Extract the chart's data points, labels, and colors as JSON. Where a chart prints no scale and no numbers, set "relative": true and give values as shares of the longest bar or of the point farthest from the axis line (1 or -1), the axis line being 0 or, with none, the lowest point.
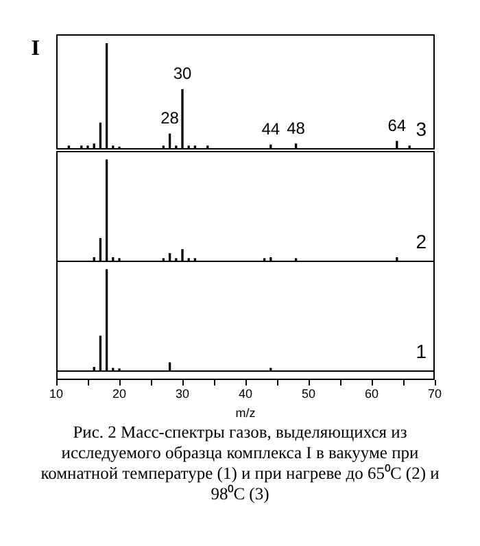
{
  "chart_data": [
    {
      "type": "bar",
      "relative": true,
      "ylabel": "I",
      "xlim": [
        10,
        70
      ],
      "tick_labels": false,
      "legend": false,
      "x": [
        12,
        14,
        15,
        16,
        17,
        18,
        19,
        20,
        27,
        28,
        29,
        30,
        31,
        32,
        34,
        44,
        48,
        64,
        66
      ],
      "series": [
        {
          "name": "3",
          "color": "#000000",
          "values": [
            0.02,
            0.02,
            0.02,
            0.04,
            0.24,
            1,
            0.02,
            0.01,
            0.02,
            0.135,
            0.02,
            0.56,
            0.02,
            0.02,
            0.02,
            0.03,
            0.04,
            0.065,
            0.02
          ]
        }
      ],
      "annotations": [
        {
          "text": "28",
          "x": 28,
          "y": 0.135
        },
        {
          "text": "30",
          "x": 30,
          "y": 0.56
        },
        {
          "text": "44",
          "x": 44,
          "y": 0.03
        },
        {
          "text": "48",
          "x": 48,
          "y": 0.04
        },
        {
          "text": "64",
          "x": 64,
          "y": 0.065
        }
      ]
    },
    {
      "type": "bar",
      "relative": true,
      "xlim": [
        10,
        70
      ],
      "tick_labels": false,
      "legend": false,
      "x": [
        16,
        17,
        18,
        19,
        20,
        27,
        28,
        29,
        30,
        31,
        32,
        43,
        44,
        48,
        64
      ],
      "series": [
        {
          "name": "2",
          "color": "#000000",
          "values": [
            0.03,
            0.22,
            1,
            0.03,
            0.02,
            0.02,
            0.07,
            0.02,
            0.11,
            0.02,
            0.02,
            0.02,
            0.03,
            0.02,
            0.03
          ]
        }
      ]
    },
    {
      "type": "bar",
      "relative": true,
      "xlabel": "m/z",
      "xlim": [
        10,
        70
      ],
      "tick_labels": "x",
      "legend": false,
      "xticks": [
        10,
        {
          "value": 15,
          "label": null
        },
        20,
        {
          "value": 25,
          "label": null
        },
        30,
        {
          "value": 35,
          "label": null
        },
        40,
        {
          "value": 45,
          "label": null
        },
        50,
        {
          "value": 55,
          "label": null
        },
        60,
        {
          "value": 65,
          "label": null
        },
        70
      ],
      "x": [
        16,
        17,
        18,
        19,
        20,
        28,
        44
      ],
      "series": [
        {
          "name": "1",
          "color": "#000000",
          "values": [
            0.03,
            0.34,
            1,
            0.02,
            0.015,
            0.075,
            0.02
          ]
        }
      ],
      "annotations": [
        "Рис. 2  Масс-спектры газов, выделяющихся из исследуемого образца комплекса I в вакууме при комнатной температуре (1) и при нагреве до 65⁰С (2) и 98⁰С (3)"
      ]
    }
  ]
}
